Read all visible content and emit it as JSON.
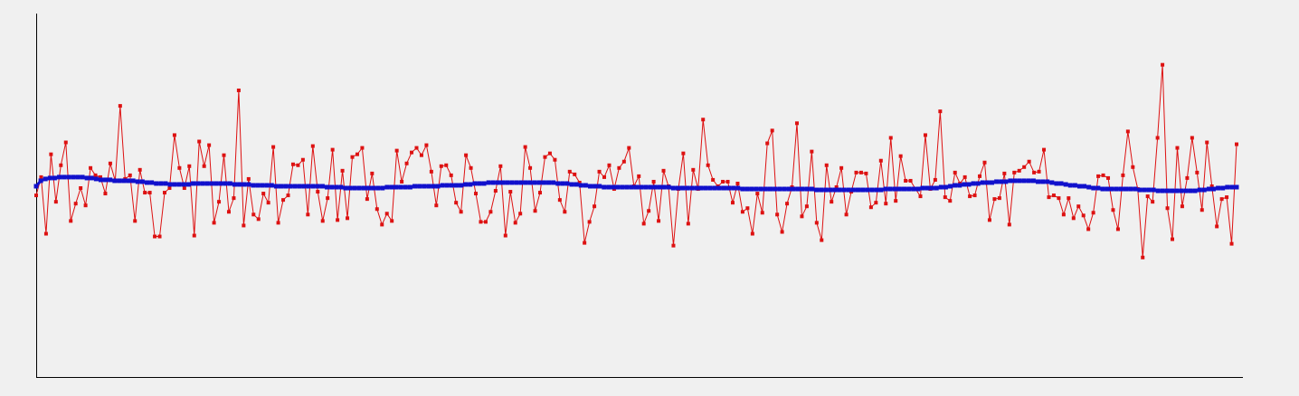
{
  "chart_data": {
    "type": "line",
    "title": "",
    "xlabel": "",
    "ylabel": "",
    "grid": false,
    "legend": "none",
    "xlim": [
      0,
      250
    ],
    "ylim": [
      -200,
      200
    ],
    "series": [
      {
        "color": "#dd1111",
        "values": [
          -10,
          10,
          -52,
          35,
          -17,
          23,
          48,
          -38,
          -19,
          -2,
          -21,
          20,
          12,
          10,
          -8,
          25,
          6,
          88,
          8,
          12,
          -38,
          18,
          -7,
          -7,
          -55,
          -55,
          -7,
          -2,
          56,
          20,
          -2,
          22,
          -54,
          49,
          22,
          45,
          -40,
          -17,
          34,
          -28,
          -13,
          105,
          -43,
          8,
          -31,
          -36,
          -8,
          -18,
          43,
          -40,
          -15,
          -10,
          24,
          23,
          29,
          -31,
          44,
          -6,
          -38,
          -13,
          40,
          -37,
          17,
          -35,
          32,
          35,
          42,
          -14,
          14,
          -25,
          -42,
          -30,
          -38,
          39,
          5,
          25,
          37,
          42,
          34,
          45,
          16,
          -21,
          22,
          23,
          12,
          -18,
          -28,
          34,
          20,
          -8,
          -39,
          -39,
          -28,
          -5,
          22,
          -54,
          -6,
          -40,
          -30,
          43,
          20,
          -27,
          -7,
          32,
          36,
          29,
          -15,
          -28,
          16,
          13,
          4,
          -62,
          -39,
          -22,
          16,
          10,
          23,
          -3,
          20,
          27,
          42,
          0,
          11,
          -41,
          -27,
          5,
          -38,
          17,
          0,
          -65,
          -3,
          36,
          -41,
          18,
          -3,
          73,
          23,
          7,
          0,
          5,
          5,
          -18,
          3,
          -28,
          -24,
          -52,
          -8,
          -29,
          47,
          61,
          -31,
          -50,
          -19,
          -1,
          69,
          -33,
          -22,
          38,
          -40,
          -59,
          23,
          -17,
          -1,
          20,
          -31,
          -6,
          15,
          15,
          14,
          -23,
          -18,
          28,
          -19,
          53,
          -16,
          33,
          6,
          6,
          -3,
          -11,
          56,
          -3,
          7,
          82,
          -12,
          -16,
          15,
          3,
          10,
          -11,
          -10,
          11,
          26,
          -37,
          -14,
          -13,
          14,
          -42,
          15,
          17,
          21,
          27,
          15,
          16,
          40,
          -12,
          -10,
          -13,
          -31,
          -13,
          -35,
          -22,
          -32,
          -47,
          -29,
          11,
          12,
          9,
          -26,
          -47,
          12,
          60,
          21,
          -3,
          -78,
          -11,
          -17,
          53,
          133,
          -24,
          -58,
          42,
          -22,
          9,
          53,
          15,
          -26,
          48,
          0,
          -44,
          -14,
          -12,
          -63,
          46
        ]
      },
      {
        "color": "#1010cc",
        "values": [
          0,
          6,
          8,
          9,
          9,
          10,
          10,
          10,
          10,
          10,
          10,
          9,
          9,
          8,
          7,
          7,
          7,
          6,
          6,
          6,
          6,
          6,
          5,
          5,
          4,
          4,
          3,
          3,
          3,
          2,
          2,
          2,
          2,
          2,
          3,
          3,
          3,
          3,
          3,
          3,
          3,
          3,
          3,
          2,
          2,
          2,
          2,
          1,
          1,
          1,
          1,
          1,
          0,
          0,
          0,
          0,
          0,
          0,
          0,
          0,
          0,
          0,
          0,
          -1,
          -1,
          -1,
          -1,
          -2,
          -2,
          -2,
          -2,
          -2,
          -2,
          -2,
          -2,
          -2,
          -1,
          -1,
          -1,
          -1,
          -1,
          -1,
          0,
          0,
          0,
          0,
          0,
          0,
          1,
          1,
          1,
          1,
          1,
          2,
          2,
          3,
          3,
          3,
          4,
          4,
          4,
          4,
          4,
          4,
          4,
          4,
          4,
          4,
          4,
          4,
          4,
          4,
          4,
          3,
          3,
          3,
          2,
          2,
          1,
          1,
          0,
          0,
          0,
          -1,
          -1,
          -1,
          -1,
          -1,
          -1,
          -1,
          -1,
          -1,
          -1,
          -1,
          -1,
          -1,
          -1,
          -1,
          -2,
          -2,
          -2,
          -2,
          -2,
          -2,
          -2,
          -2,
          -2,
          -2,
          -2,
          -2,
          -2,
          -2,
          -2,
          -3,
          -3,
          -3,
          -3,
          -3,
          -3,
          -3,
          -3,
          -3,
          -3,
          -3,
          -3,
          -3,
          -3,
          -3,
          -3,
          -4,
          -4,
          -4,
          -4,
          -4,
          -4,
          -4,
          -4,
          -4,
          -4,
          -4,
          -4,
          -4,
          -4,
          -4,
          -3,
          -3,
          -3,
          -3,
          -3,
          -3,
          -3,
          -3,
          -2,
          -2,
          -2,
          -2,
          -1,
          -1,
          0,
          1,
          1,
          2,
          2,
          3,
          3,
          4,
          4,
          4,
          5,
          5,
          5,
          6,
          6,
          6,
          6,
          6,
          6,
          5,
          5,
          5,
          4,
          3,
          3,
          2,
          1,
          1,
          0,
          0,
          -1,
          -2,
          -2,
          -3,
          -3,
          -3,
          -3,
          -3,
          -3,
          -3,
          -3,
          -4,
          -4,
          -4,
          -4,
          -5,
          -5,
          -5,
          -5,
          -5,
          -5,
          -5,
          -5,
          -5,
          -4,
          -4,
          -3,
          -3,
          -2,
          -2,
          -1,
          -1,
          -1
        ]
      }
    ]
  }
}
